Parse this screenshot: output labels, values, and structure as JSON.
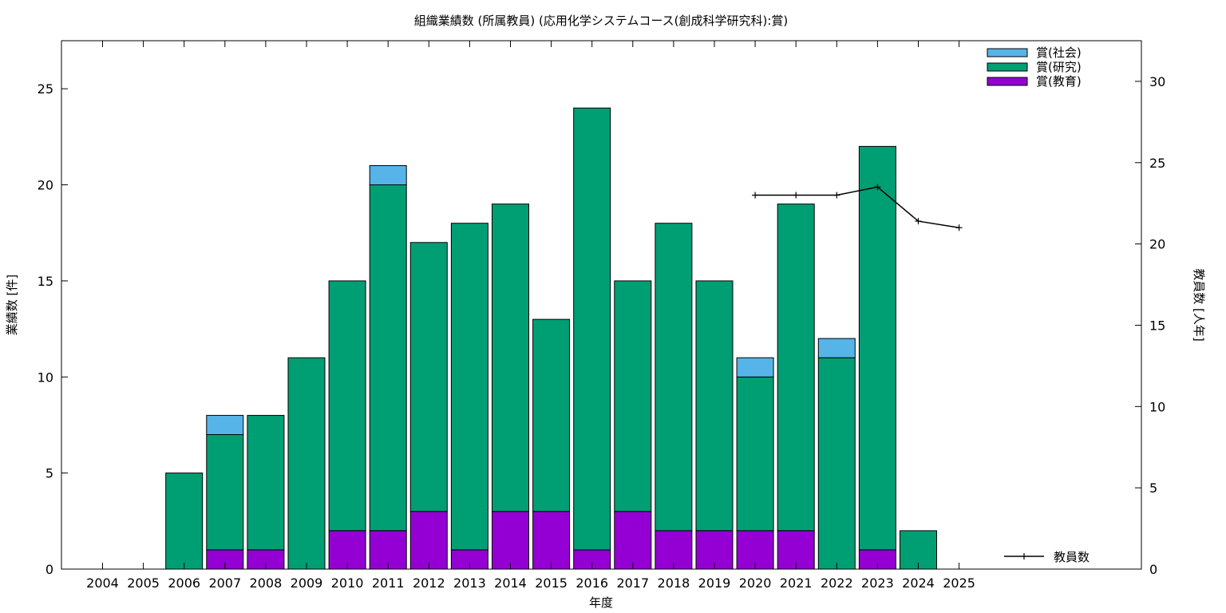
{
  "chart_data": {
    "type": "bar",
    "title": "組織業績数 (所属教員) (応用化学システムコース(創成科学研究科):賞)",
    "xlabel": "年度",
    "ylabel": "業績数 [件]",
    "y2label": "教員数 [人年]",
    "categories": [
      "2004",
      "2005",
      "2006",
      "2007",
      "2008",
      "2009",
      "2010",
      "2011",
      "2012",
      "2013",
      "2014",
      "2015",
      "2016",
      "2017",
      "2018",
      "2019",
      "2020",
      "2021",
      "2022",
      "2023",
      "2024",
      "2025"
    ],
    "ylim": [
      0,
      27.5
    ],
    "yticks": [
      0,
      5,
      10,
      15,
      20,
      25
    ],
    "y2lim": [
      0,
      32.5
    ],
    "y2ticks": [
      0,
      5,
      10,
      15,
      20,
      25,
      30
    ],
    "stacked": true,
    "series": [
      {
        "name": "賞(教育)",
        "color": "#9400d3",
        "values": [
          0,
          0,
          0,
          1,
          1,
          0,
          2,
          2,
          3,
          1,
          3,
          3,
          1,
          3,
          2,
          2,
          2,
          2,
          0,
          1,
          0,
          0
        ]
      },
      {
        "name": "賞(研究)",
        "color": "#009e73",
        "values": [
          0,
          0,
          5,
          6,
          7,
          11,
          13,
          18,
          14,
          17,
          16,
          10,
          23,
          12,
          16,
          13,
          8,
          17,
          11,
          21,
          2,
          0
        ]
      },
      {
        "name": "賞(社会)",
        "color": "#56b4e9",
        "values": [
          0,
          0,
          0,
          1,
          0,
          0,
          0,
          1,
          0,
          0,
          0,
          0,
          0,
          0,
          0,
          0,
          1,
          0,
          1,
          0,
          0,
          0
        ]
      }
    ],
    "line_series": {
      "name": "教員数",
      "axis": "y2",
      "color": "#000000",
      "x": [
        "2020",
        "2021",
        "2022",
        "2023",
        "2024",
        "2025"
      ],
      "values": [
        23,
        23,
        23,
        23.5,
        21.4,
        21
      ]
    },
    "legend_position": "top-right",
    "grid": false
  }
}
